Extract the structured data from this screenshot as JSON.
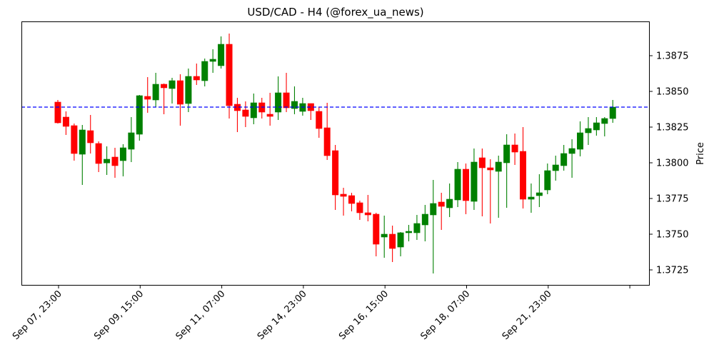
{
  "chart_data": {
    "type": "candlestick",
    "title": "USD/CAD - H4 (@forex_ua_news)",
    "xlabel": "",
    "ylabel": "Price",
    "ylim": [
      1.3714,
      1.3899
    ],
    "grid": false,
    "legend": null,
    "y_ticks": [
      1.3725,
      1.375,
      1.3775,
      1.38,
      1.3825,
      1.385,
      1.3875
    ],
    "y_tick_labels": [
      "1.3725",
      "1.3750",
      "1.3775",
      "1.3800",
      "1.3825",
      "1.3850",
      "1.3875"
    ],
    "x_ticks_index": [
      0,
      10,
      20,
      30,
      40,
      50,
      60,
      70
    ],
    "x_tick_labels": [
      "Sep 07, 23:00",
      "Sep 09, 15:00",
      "Sep 11, 07:00",
      "Sep 14, 23:00",
      "Sep 16, 15:00",
      "Sep 18, 07:00",
      "Sep 21, 23:00",
      ""
    ],
    "reference_line": {
      "value": 1.3839,
      "style": "dashed",
      "color": "#0000ff"
    },
    "colors": {
      "up": "#008000",
      "down": "#ff0000"
    },
    "candles": [
      {
        "o": 1.38425,
        "h": 1.3844,
        "l": 1.38275,
        "c": 1.3828
      },
      {
        "o": 1.3832,
        "h": 1.3836,
        "l": 1.38195,
        "c": 1.38255
      },
      {
        "o": 1.3826,
        "h": 1.38275,
        "l": 1.38015,
        "c": 1.38065
      },
      {
        "o": 1.3806,
        "h": 1.38265,
        "l": 1.37845,
        "c": 1.3823
      },
      {
        "o": 1.38225,
        "h": 1.38335,
        "l": 1.38065,
        "c": 1.3814
      },
      {
        "o": 1.38135,
        "h": 1.3815,
        "l": 1.37935,
        "c": 1.37995
      },
      {
        "o": 1.37999,
        "h": 1.38115,
        "l": 1.37915,
        "c": 1.38025
      },
      {
        "o": 1.3804,
        "h": 1.38105,
        "l": 1.37895,
        "c": 1.3798
      },
      {
        "o": 1.38015,
        "h": 1.3813,
        "l": 1.37905,
        "c": 1.38105
      },
      {
        "o": 1.38095,
        "h": 1.3832,
        "l": 1.38005,
        "c": 1.3821
      },
      {
        "o": 1.382,
        "h": 1.38475,
        "l": 1.38155,
        "c": 1.3847
      },
      {
        "o": 1.38465,
        "h": 1.386,
        "l": 1.3835,
        "c": 1.38445
      },
      {
        "o": 1.3844,
        "h": 1.3863,
        "l": 1.3839,
        "c": 1.3855
      },
      {
        "o": 1.3855,
        "h": 1.38555,
        "l": 1.3834,
        "c": 1.38525
      },
      {
        "o": 1.3852,
        "h": 1.38595,
        "l": 1.38415,
        "c": 1.38575
      },
      {
        "o": 1.38575,
        "h": 1.3862,
        "l": 1.3826,
        "c": 1.3841
      },
      {
        "o": 1.38415,
        "h": 1.3866,
        "l": 1.38355,
        "c": 1.38605
      },
      {
        "o": 1.38605,
        "h": 1.38695,
        "l": 1.38545,
        "c": 1.3858
      },
      {
        "o": 1.38575,
        "h": 1.3873,
        "l": 1.38535,
        "c": 1.3871
      },
      {
        "o": 1.3871,
        "h": 1.38795,
        "l": 1.3863,
        "c": 1.38725
      },
      {
        "o": 1.3868,
        "h": 1.38885,
        "l": 1.3866,
        "c": 1.3883
      },
      {
        "o": 1.3883,
        "h": 1.38905,
        "l": 1.3831,
        "c": 1.384
      },
      {
        "o": 1.3841,
        "h": 1.38455,
        "l": 1.38215,
        "c": 1.38365
      },
      {
        "o": 1.3837,
        "h": 1.3843,
        "l": 1.3825,
        "c": 1.38325
      },
      {
        "o": 1.38315,
        "h": 1.38485,
        "l": 1.3827,
        "c": 1.3842
      },
      {
        "o": 1.3842,
        "h": 1.38455,
        "l": 1.3831,
        "c": 1.38355
      },
      {
        "o": 1.3834,
        "h": 1.3849,
        "l": 1.3826,
        "c": 1.38325
      },
      {
        "o": 1.38355,
        "h": 1.38605,
        "l": 1.383,
        "c": 1.3849
      },
      {
        "o": 1.3849,
        "h": 1.3863,
        "l": 1.38355,
        "c": 1.38385
      },
      {
        "o": 1.3838,
        "h": 1.38535,
        "l": 1.3834,
        "c": 1.3843
      },
      {
        "o": 1.3836,
        "h": 1.38455,
        "l": 1.3833,
        "c": 1.38415
      },
      {
        "o": 1.38415,
        "h": 1.38415,
        "l": 1.383,
        "c": 1.38365
      },
      {
        "o": 1.3836,
        "h": 1.3839,
        "l": 1.38175,
        "c": 1.3824
      },
      {
        "o": 1.38245,
        "h": 1.3842,
        "l": 1.3802,
        "c": 1.3805
      },
      {
        "o": 1.38085,
        "h": 1.38125,
        "l": 1.3767,
        "c": 1.37775
      },
      {
        "o": 1.3778,
        "h": 1.37825,
        "l": 1.3763,
        "c": 1.37765
      },
      {
        "o": 1.3777,
        "h": 1.3779,
        "l": 1.3766,
        "c": 1.37715
      },
      {
        "o": 1.3772,
        "h": 1.37735,
        "l": 1.376,
        "c": 1.3765
      },
      {
        "o": 1.3765,
        "h": 1.37775,
        "l": 1.3759,
        "c": 1.37635
      },
      {
        "o": 1.3764,
        "h": 1.3765,
        "l": 1.37345,
        "c": 1.3743
      },
      {
        "o": 1.3748,
        "h": 1.3763,
        "l": 1.37335,
        "c": 1.375
      },
      {
        "o": 1.375,
        "h": 1.3756,
        "l": 1.37305,
        "c": 1.374
      },
      {
        "o": 1.3741,
        "h": 1.37515,
        "l": 1.37345,
        "c": 1.3751
      },
      {
        "o": 1.3751,
        "h": 1.37565,
        "l": 1.3745,
        "c": 1.3752
      },
      {
        "o": 1.3751,
        "h": 1.37635,
        "l": 1.3746,
        "c": 1.37575
      },
      {
        "o": 1.37565,
        "h": 1.37705,
        "l": 1.3745,
        "c": 1.3764
      },
      {
        "o": 1.37635,
        "h": 1.3788,
        "l": 1.37225,
        "c": 1.37715
      },
      {
        "o": 1.37725,
        "h": 1.3779,
        "l": 1.3753,
        "c": 1.37695
      },
      {
        "o": 1.37685,
        "h": 1.37855,
        "l": 1.3762,
        "c": 1.37745
      },
      {
        "o": 1.3774,
        "h": 1.38005,
        "l": 1.3769,
        "c": 1.37955
      },
      {
        "o": 1.37955,
        "h": 1.37995,
        "l": 1.3764,
        "c": 1.37735
      },
      {
        "o": 1.3773,
        "h": 1.381,
        "l": 1.3767,
        "c": 1.38005
      },
      {
        "o": 1.38035,
        "h": 1.381,
        "l": 1.37625,
        "c": 1.37965
      },
      {
        "o": 1.37965,
        "h": 1.38025,
        "l": 1.37575,
        "c": 1.3795
      },
      {
        "o": 1.3794,
        "h": 1.3805,
        "l": 1.37615,
        "c": 1.38005
      },
      {
        "o": 1.38,
        "h": 1.382,
        "l": 1.37685,
        "c": 1.38125
      },
      {
        "o": 1.38125,
        "h": 1.38205,
        "l": 1.37985,
        "c": 1.38075
      },
      {
        "o": 1.3808,
        "h": 1.3825,
        "l": 1.3768,
        "c": 1.37745
      },
      {
        "o": 1.37745,
        "h": 1.37855,
        "l": 1.3765,
        "c": 1.3776
      },
      {
        "o": 1.3777,
        "h": 1.3792,
        "l": 1.3769,
        "c": 1.3779
      },
      {
        "o": 1.3781,
        "h": 1.37995,
        "l": 1.3778,
        "c": 1.37945
      },
      {
        "o": 1.37945,
        "h": 1.3805,
        "l": 1.37875,
        "c": 1.37985
      },
      {
        "o": 1.3798,
        "h": 1.38125,
        "l": 1.37945,
        "c": 1.38065
      },
      {
        "o": 1.38065,
        "h": 1.38165,
        "l": 1.37895,
        "c": 1.381
      },
      {
        "o": 1.38095,
        "h": 1.3829,
        "l": 1.38045,
        "c": 1.3821
      },
      {
        "o": 1.3821,
        "h": 1.3832,
        "l": 1.38125,
        "c": 1.3824
      },
      {
        "o": 1.3823,
        "h": 1.3832,
        "l": 1.3819,
        "c": 1.3828
      },
      {
        "o": 1.38275,
        "h": 1.3832,
        "l": 1.38185,
        "c": 1.3831
      },
      {
        "o": 1.3831,
        "h": 1.3844,
        "l": 1.3828,
        "c": 1.3839
      }
    ]
  }
}
